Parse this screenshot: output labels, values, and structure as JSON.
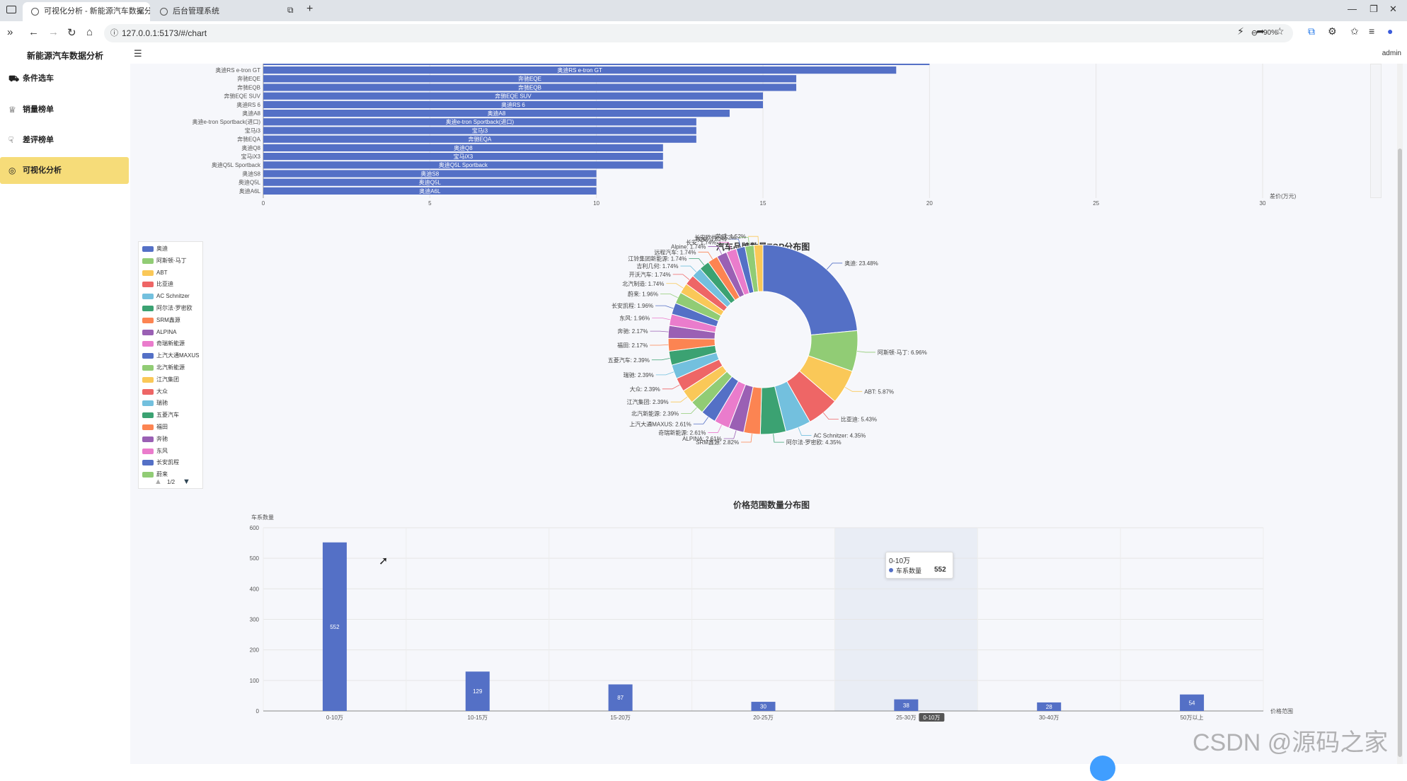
{
  "browser": {
    "tabs": [
      {
        "title": "可视化分析 - 新能源汽车数据分",
        "active": true
      },
      {
        "title": "后台管理系统",
        "active": false
      }
    ],
    "url": "127.0.0.1:5173/#/chart",
    "zoom": "90%"
  },
  "app": {
    "title": "新能源汽车数据分析",
    "user": "admin",
    "menu": [
      {
        "label": "条件选车",
        "icon": "car-icon",
        "active": false
      },
      {
        "label": "销量榜单",
        "icon": "trophy-icon",
        "active": false
      },
      {
        "label": "差评榜单",
        "icon": "thumbs-down-icon",
        "active": false
      },
      {
        "label": "可视化分析",
        "icon": "chart-icon",
        "active": true
      }
    ]
  },
  "chart_data": [
    {
      "type": "bar",
      "orientation": "horizontal",
      "xlabel": "差价(万元)",
      "xlim": [
        0,
        30
      ],
      "xticks": [
        0,
        5,
        10,
        15,
        20,
        25,
        30
      ],
      "categories": [
        "奥迪RS e-tron GT",
        "奔驰EQE",
        "奔驰EQB",
        "奔驰EQE SUV",
        "奥迪RS 6",
        "奥迪A8",
        "奥迪e-tron Sportback(进口)",
        "宝马i3",
        "奔驰EQA",
        "奥迪Q8",
        "宝马iX3",
        "奥迪Q5L Sportback",
        "奥迪S8",
        "奥迪Q5L",
        "奥迪A6L"
      ],
      "values": [
        19,
        16,
        16,
        15,
        15,
        14,
        13,
        13,
        13,
        12,
        12,
        12,
        10,
        10,
        10
      ],
      "truncated_top_bar_value": 20
    },
    {
      "type": "pie",
      "title": "汽车品牌数量TOP分布图",
      "donut": true,
      "legend_page": "1/2",
      "legend": [
        "奥迪",
        "阿斯顿·马丁",
        "ABT",
        "比亚迪",
        "AC Schnitzer",
        "阿尔法·罗密欧",
        "SRM鑫源",
        "ALPINA",
        "奇瑞新能源",
        "上汽大通MAXUS",
        "北汽新能源",
        "江汽集团",
        "大众",
        "瑞驰",
        "五菱汽车",
        "福田",
        "奔驰",
        "东风",
        "长安凯程",
        "蔚来"
      ],
      "slices": [
        {
          "name": "奥迪",
          "value": 23.48,
          "label": "奥迪: 23.48%"
        },
        {
          "name": "阿斯顿·马丁",
          "value": 6.96,
          "label": "阿斯顿·马丁: 6.96%"
        },
        {
          "name": "ABT",
          "value": 5.87,
          "label": "ABT: 5.87%"
        },
        {
          "name": "比亚迪",
          "value": 5.43,
          "label": "比亚迪: 5.43%"
        },
        {
          "name": "AC Schnitzer",
          "value": 4.35,
          "label": "AC Schnitzer: 4.35%"
        },
        {
          "name": "阿尔法·罗密欧",
          "value": 4.35,
          "label": "阿尔法·罗密欧: 4.35%"
        },
        {
          "name": "SRM鑫源",
          "value": 2.82,
          "label": "SRM鑫源: 2.82%"
        },
        {
          "name": "ALPINA",
          "value": 2.61,
          "label": "ALPINA: 2.61%"
        },
        {
          "name": "奇瑞新能源",
          "value": 2.61,
          "label": "奇瑞新能源: 2.61%"
        },
        {
          "name": "上汽大通MAXUS",
          "value": 2.61,
          "label": "上汽大通MAXUS: 2.61%"
        },
        {
          "name": "北汽新能源",
          "value": 2.39,
          "label": "北汽新能源: 2.39%"
        },
        {
          "name": "江汽集团",
          "value": 2.39,
          "label": "江汽集团: 2.39%"
        },
        {
          "name": "大众",
          "value": 2.39,
          "label": "大众: 2.39%"
        },
        {
          "name": "瑞驰",
          "value": 2.39,
          "label": "瑞驰: 2.39%"
        },
        {
          "name": "五菱汽车",
          "value": 2.39,
          "label": "五菱汽车: 2.39%"
        },
        {
          "name": "福田",
          "value": 2.17,
          "label": "福田: 2.17%"
        },
        {
          "name": "奔驰",
          "value": 2.17,
          "label": "奔驰: 2.17%"
        },
        {
          "name": "东风",
          "value": 1.96,
          "label": "东风: 1.96%"
        },
        {
          "name": "长安凯程",
          "value": 1.96,
          "label": "长安凯程: 1.96%"
        },
        {
          "name": "蔚来",
          "value": 1.96,
          "label": "蔚来: 1.96%"
        },
        {
          "name": "北汽制造",
          "value": 1.74,
          "label": "北汽制造: 1.74%"
        },
        {
          "name": "开沃汽车",
          "value": 1.74,
          "label": "开沃汽车: 1.74%"
        },
        {
          "name": "吉利几何",
          "value": 1.74,
          "label": "吉利几何: 1.74%"
        },
        {
          "name": "江铃集团新能源",
          "value": 1.74,
          "label": "江铃集团新能源: 1.74%"
        },
        {
          "name": "远程汽车",
          "value": 1.74,
          "label": "远程汽车: 1.74%"
        },
        {
          "name": "Alpine",
          "value": 1.74,
          "label": "Alpine: 1.74%"
        },
        {
          "name": "长安",
          "value": 1.74,
          "label": "长安: 1.74%"
        },
        {
          "name": "埃安",
          "value": 1.52,
          "label": "埃安: 1.52%"
        },
        {
          "name": "长安欧尚",
          "value": 1.52,
          "label": "长安欧尚: 1.52%"
        },
        {
          "name": "荣威",
          "value": 1.52,
          "label": "荣威: 1.52%"
        }
      ]
    },
    {
      "type": "bar",
      "title": "价格范围数量分布图",
      "ylabel": "车系数量",
      "xlabel": "价格范围",
      "ylim": [
        0,
        600
      ],
      "yticks": [
        0,
        100,
        200,
        300,
        400,
        500,
        600
      ],
      "categories": [
        "0-10万",
        "10-15万",
        "15-20万",
        "20-25万",
        "25-30万",
        "30-40万",
        "50万以上"
      ],
      "series": [
        {
          "name": "车系数量",
          "values": [
            552,
            129,
            87,
            30,
            38,
            28,
            54
          ]
        }
      ],
      "tooltip": {
        "title": "0-10万",
        "series": "车系数量",
        "value": "552"
      },
      "axis_pointer_label": "0-10万"
    }
  ],
  "colors": [
    "#5470c6",
    "#91cc75",
    "#fac858",
    "#ee6666",
    "#73c0de",
    "#3ba272",
    "#fc8452",
    "#9a60b4",
    "#ea7ccc"
  ],
  "watermark": "CSDN @源码之家"
}
